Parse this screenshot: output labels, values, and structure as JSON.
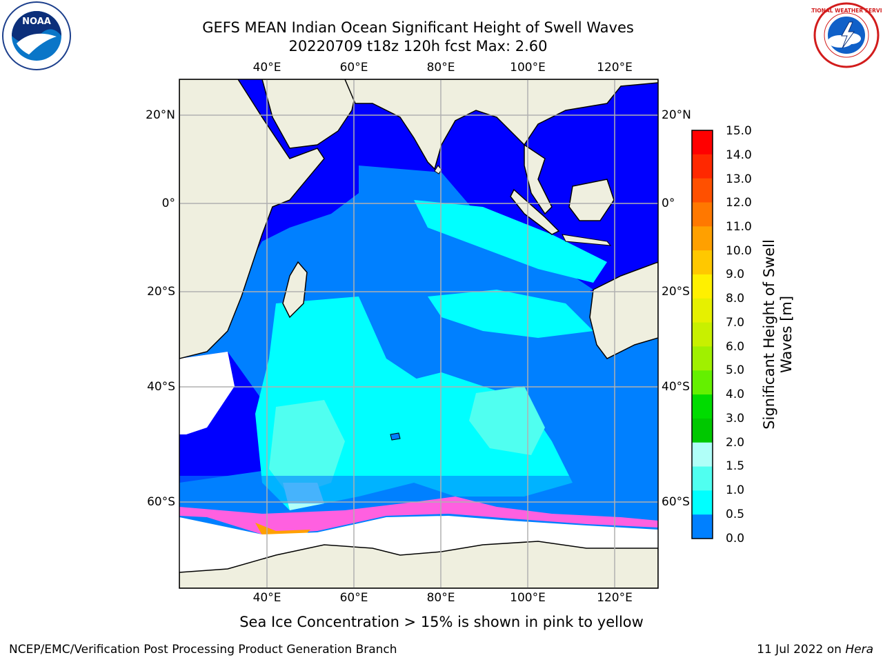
{
  "title": {
    "line1": "GEFS MEAN Indian Ocean Significant Height of Swell Waves",
    "line2": "20220709 t18z 120h fcst   Max: 2.60"
  },
  "logos": {
    "left": "noara-logo",
    "left_text": "NOAA",
    "right": "national-weather-service-logo",
    "right_text": "NATIONAL WEATHER SERVICE"
  },
  "map": {
    "lon_ticks": [
      "40°E",
      "60°E",
      "80°E",
      "100°E",
      "120°E"
    ],
    "lat_ticks": [
      "20°N",
      "0°",
      "20°S",
      "40°S",
      "60°S"
    ],
    "lon_values": [
      40,
      60,
      80,
      100,
      120
    ],
    "lat_values": [
      20,
      0,
      -20,
      -40,
      -60
    ],
    "lon_range": [
      20,
      130
    ],
    "lat_range": [
      -70,
      28
    ],
    "grid": true
  },
  "colorbar": {
    "title": "Significant Height of Swell Waves [m]",
    "title_line1": "Significant Height of Swell",
    "title_line2": "Waves [m]",
    "labels": [
      "15.0",
      "14.0",
      "13.0",
      "12.0",
      "11.0",
      "10.0",
      "9.0",
      "8.0",
      "7.0",
      "6.0",
      "5.0",
      "4.0",
      "3.0",
      "2.0",
      "1.5",
      "1.0",
      "0.5",
      "0.0"
    ],
    "colors": [
      "#ff0000",
      "#ff2800",
      "#ff5000",
      "#ff7800",
      "#ffa000",
      "#ffc800",
      "#fff000",
      "#e6f000",
      "#c8f000",
      "#a0f000",
      "#64f000",
      "#00dc00",
      "#00c800",
      "#50f080",
      "#b0fff8",
      "#50fff0",
      "#00ffff",
      "#0080ff",
      "#0000ff"
    ]
  },
  "caption": "Sea Ice Concentration > 15% is shown in pink to yellow",
  "footer": {
    "left": "NCEP/EMC/Verification Post Processing Product Generation Branch",
    "right_date": "11 Jul 2022 on ",
    "right_machine": "Hera"
  }
}
